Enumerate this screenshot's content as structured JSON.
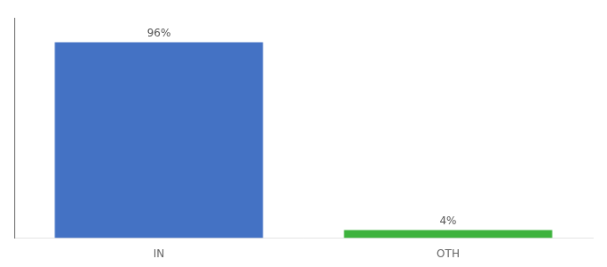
{
  "chart_data": {
    "type": "bar",
    "categories": [
      "IN",
      "OTH"
    ],
    "values": [
      96,
      4
    ],
    "value_labels": [
      "96%",
      "4%"
    ],
    "colors": [
      "#4472c4",
      "#3db33d"
    ],
    "ylim": [
      0,
      108
    ],
    "yticks": [],
    "grid": false,
    "data_labels": true,
    "tick_labels": "x"
  }
}
